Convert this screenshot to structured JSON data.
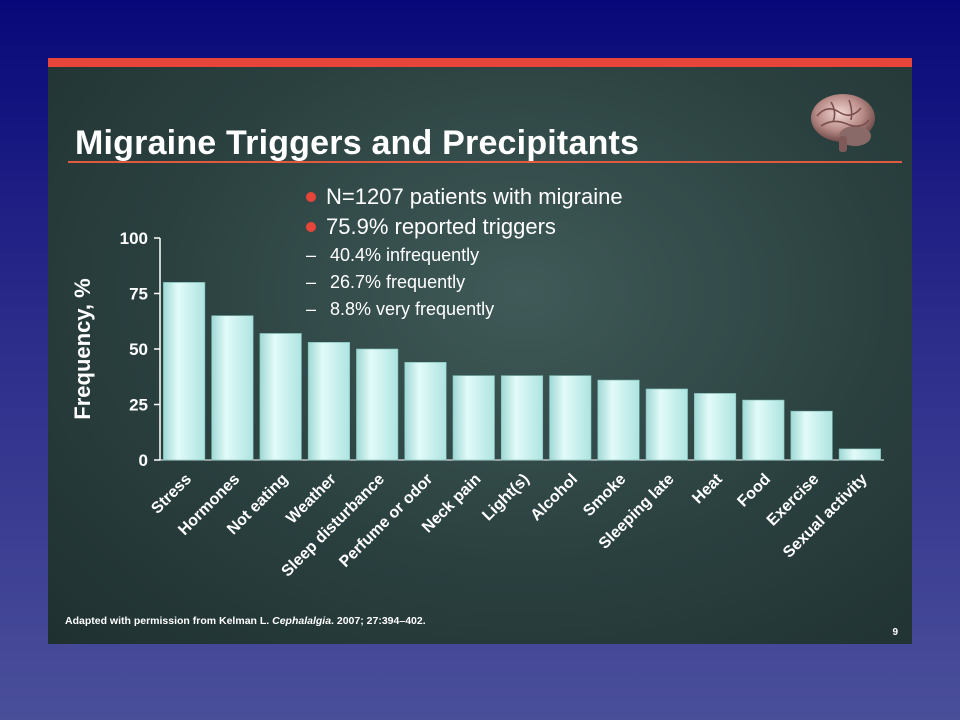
{
  "slide": {
    "title": "Migraine Triggers and Precipitants",
    "bullets": [
      "N=1207 patients with migraine",
      "75.9% reported triggers"
    ],
    "sub_bullets": [
      "40.4% infrequently",
      "26.7% frequently",
      "8.8% very frequently"
    ],
    "sub_bullet_marker": "–",
    "footnote": {
      "prefix": "Adapted with permission from Kelman L. ",
      "journal": "Cephalalgia",
      "suffix": ". 2007; 27:394–402."
    },
    "page_number": "9",
    "colors": {
      "background_top": "#08087a",
      "accent": "#e8453a",
      "bar": "#c8f4f0",
      "panel": "#2a403f"
    }
  },
  "chart_data": {
    "type": "bar",
    "ylabel": "Frequency, %",
    "xlabel": "",
    "ylim": [
      0,
      100
    ],
    "yticks": [
      0,
      25,
      50,
      75,
      100
    ],
    "categories": [
      "Stress",
      "Hormones",
      "Not eating",
      "Weather",
      "Sleep disturbance",
      "Perfume or odor",
      "Neck pain",
      "Light(s)",
      "Alcohol",
      "Smoke",
      "Sleeping late",
      "Heat",
      "Food",
      "Exercise",
      "Sexual activity"
    ],
    "values": [
      80,
      65,
      57,
      53,
      50,
      44,
      38,
      38,
      38,
      36,
      32,
      30,
      27,
      22,
      5
    ],
    "grid": false
  }
}
